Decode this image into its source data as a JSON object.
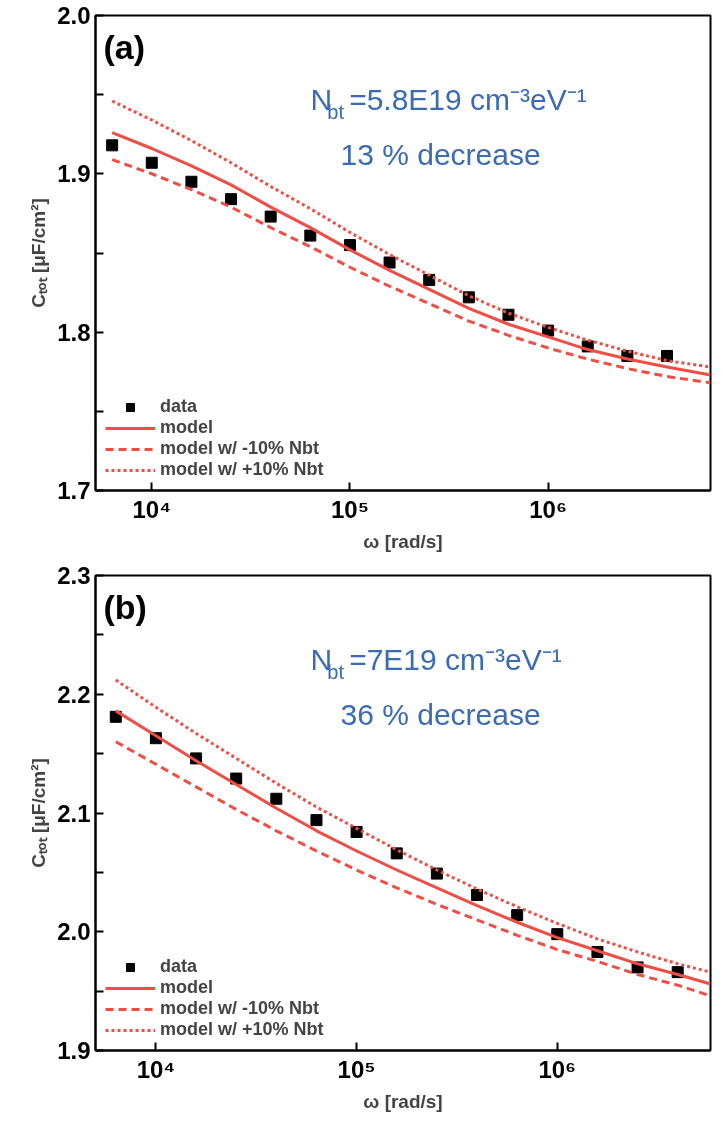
{
  "chart_data": [
    {
      "type": "scatter",
      "xlabel": "ω [rad/s]",
      "ylabel": "Cₜₒₜ [μF/cm²]",
      "log": "x",
      "legend": "bottom left",
      "grid": false,
      "annotations": [
        "(a)",
        "N$_{bt}$=5.8E19 cm⁻³eV⁻¹",
        "13 % decrease"
      ],
      "xlim": [
        5200,
        6600000
      ],
      "ylim": [
        1.7,
        2.0
      ],
      "xticks": [
        {
          "value": 10000,
          "label": "10⁴"
        },
        {
          "value": 100000,
          "label": "10⁵"
        },
        {
          "value": 1000000,
          "label": "10⁶"
        }
      ],
      "yticks": [
        1.7,
        {
          "value": 1.75,
          "label": null
        },
        1.8,
        {
          "value": 1.85,
          "label": null
        },
        1.9,
        {
          "value": 1.95,
          "label": null
        },
        {
          "value": 2.0,
          "label": "2.0"
        }
      ],
      "series": [
        {
          "name": "data",
          "marker": "square",
          "color": "#000000",
          "x": [
            6310,
            10000,
            15850,
            25120,
            39810,
            63100,
            100000,
            158500,
            251200,
            398100,
            631000,
            1000000,
            1585000,
            2512000,
            3981000
          ],
          "values": [
            1.918,
            1.907,
            1.895,
            1.884,
            1.873,
            1.861,
            1.855,
            1.844,
            1.833,
            1.822,
            1.811,
            1.801,
            1.791,
            1.785,
            1.785
          ]
        },
        {
          "name": "model",
          "type": "line",
          "line_style": "solid",
          "color": "#f04e45",
          "x": [
            6310,
            10000,
            15850,
            25120,
            39810,
            63100,
            100000,
            158500,
            251200,
            398100,
            631000,
            1000000,
            1585000,
            2512000,
            3981000,
            6600000
          ],
          "values": [
            1.926,
            1.916,
            1.905,
            1.893,
            1.879,
            1.866,
            1.852,
            1.839,
            1.827,
            1.815,
            1.805,
            1.797,
            1.789,
            1.783,
            1.778,
            1.773
          ]
        },
        {
          "name": "model w/ -10% Nbt",
          "type": "line",
          "line_style": "dashed",
          "color": "#f04e45",
          "x": [
            6310,
            10000,
            15850,
            25120,
            39810,
            63100,
            100000,
            158500,
            251200,
            398100,
            631000,
            1000000,
            1585000,
            2512000,
            3981000,
            6600000
          ],
          "values": [
            1.909,
            1.9,
            1.89,
            1.879,
            1.866,
            1.854,
            1.841,
            1.829,
            1.818,
            1.807,
            1.798,
            1.79,
            1.783,
            1.777,
            1.772,
            1.768
          ]
        },
        {
          "name": "model w/ +10% Nbt",
          "type": "line",
          "line_style": "dotted",
          "color": "#f04e45",
          "x": [
            6310,
            10000,
            15850,
            25120,
            39810,
            63100,
            100000,
            158500,
            251200,
            398100,
            631000,
            1000000,
            1585000,
            2512000,
            3981000,
            6600000
          ],
          "values": [
            1.946,
            1.934,
            1.921,
            1.907,
            1.892,
            1.878,
            1.863,
            1.849,
            1.836,
            1.823,
            1.812,
            1.803,
            1.795,
            1.788,
            1.782,
            1.778
          ]
        }
      ]
    },
    {
      "type": "scatter",
      "xlabel": "ω [rad/s]",
      "ylabel": "Cₜₒₜ [μF/cm²]",
      "log": "x",
      "legend": "bottom left",
      "grid": false,
      "annotations": [
        "(b)",
        "N$_{bt}$=7E19 cm⁻³eV⁻¹",
        "36 % decrease"
      ],
      "xlim": [
        5000,
        5800000
      ],
      "ylim": [
        1.9,
        2.3
      ],
      "xticks": [
        {
          "value": 10000,
          "label": "10⁴"
        },
        {
          "value": 100000,
          "label": "10⁵"
        },
        {
          "value": 1000000,
          "label": "10⁶"
        }
      ],
      "yticks": [
        1.9,
        {
          "value": 1.95,
          "label": null
        },
        {
          "value": 2.0,
          "label": "2.0"
        },
        {
          "value": 2.05,
          "label": null
        },
        2.1,
        {
          "value": 2.15,
          "label": null
        },
        2.2,
        {
          "value": 2.25,
          "label": null
        },
        2.3
      ],
      "series": [
        {
          "name": "data",
          "marker": "square",
          "color": "#000000",
          "x": [
            6310,
            10000,
            15850,
            25120,
            39810,
            63100,
            100000,
            158500,
            251200,
            398100,
            631000,
            1000000,
            1585000,
            2512000,
            3981000
          ],
          "values": [
            2.181,
            2.163,
            2.146,
            2.129,
            2.112,
            2.094,
            2.084,
            2.066,
            2.049,
            2.031,
            2.014,
            1.998,
            1.983,
            1.97,
            1.966
          ]
        },
        {
          "name": "model",
          "type": "line",
          "line_style": "solid",
          "color": "#f04e45",
          "x": [
            6310,
            10000,
            15850,
            25120,
            39810,
            63100,
            100000,
            158500,
            251200,
            398100,
            631000,
            1000000,
            1585000,
            2512000,
            3981000,
            5800000
          ],
          "values": [
            2.186,
            2.165,
            2.144,
            2.124,
            2.104,
            2.085,
            2.068,
            2.052,
            2.037,
            2.022,
            2.008,
            1.995,
            1.984,
            1.973,
            1.964,
            1.956
          ]
        },
        {
          "name": "model w/ -10% Nbt",
          "type": "line",
          "line_style": "dashed",
          "color": "#f04e45",
          "x": [
            6310,
            10000,
            15850,
            25120,
            39810,
            63100,
            100000,
            158500,
            251200,
            398100,
            631000,
            1000000,
            1585000,
            2512000,
            3981000,
            5800000
          ],
          "values": [
            2.16,
            2.141,
            2.122,
            2.103,
            2.085,
            2.068,
            2.052,
            2.037,
            2.023,
            2.01,
            1.997,
            1.985,
            1.975,
            1.964,
            1.955,
            1.946
          ]
        },
        {
          "name": "model w/ +10% Nbt",
          "type": "line",
          "line_style": "dotted",
          "color": "#f04e45",
          "x": [
            6310,
            10000,
            15850,
            25120,
            39810,
            63100,
            100000,
            158500,
            251200,
            398100,
            631000,
            1000000,
            1585000,
            2512000,
            3981000,
            5800000
          ],
          "values": [
            2.212,
            2.189,
            2.167,
            2.146,
            2.125,
            2.105,
            2.087,
            2.069,
            2.052,
            2.036,
            2.021,
            2.007,
            1.994,
            1.983,
            1.973,
            1.966
          ]
        }
      ]
    }
  ]
}
